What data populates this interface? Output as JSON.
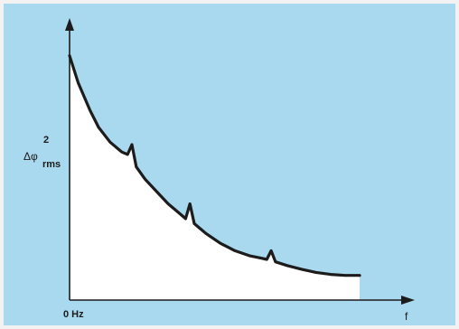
{
  "chart_data": {
    "type": "area",
    "title": "",
    "ylabel": "Δφ",
    "ylabel_superscript": "2",
    "ylabel_subscript": "rms",
    "x_tick_labels": [
      "0 Hz",
      "f"
    ],
    "xlim": [
      0,
      1
    ],
    "ylim": [
      0,
      1
    ],
    "grid": false,
    "series": [
      {
        "values_x": [
          0.0,
          0.03,
          0.07,
          0.1,
          0.14,
          0.18,
          0.2,
          0.215,
          0.23,
          0.26,
          0.3,
          0.34,
          0.38,
          0.4,
          0.415,
          0.43,
          0.47,
          0.52,
          0.57,
          0.62,
          0.66,
          0.68,
          0.695,
          0.71,
          0.75,
          0.8,
          0.85,
          0.9,
          0.95,
          1.0
        ],
        "values_y": [
          0.99,
          0.88,
          0.77,
          0.7,
          0.64,
          0.6,
          0.59,
          0.63,
          0.54,
          0.49,
          0.44,
          0.39,
          0.35,
          0.33,
          0.39,
          0.31,
          0.27,
          0.23,
          0.2,
          0.18,
          0.17,
          0.165,
          0.2,
          0.155,
          0.14,
          0.125,
          0.112,
          0.104,
          0.1,
          0.1
        ],
        "fill_color": "#ffffff",
        "line_color": "#1c1c1c"
      }
    ],
    "background_color": "#a9d9ef"
  }
}
